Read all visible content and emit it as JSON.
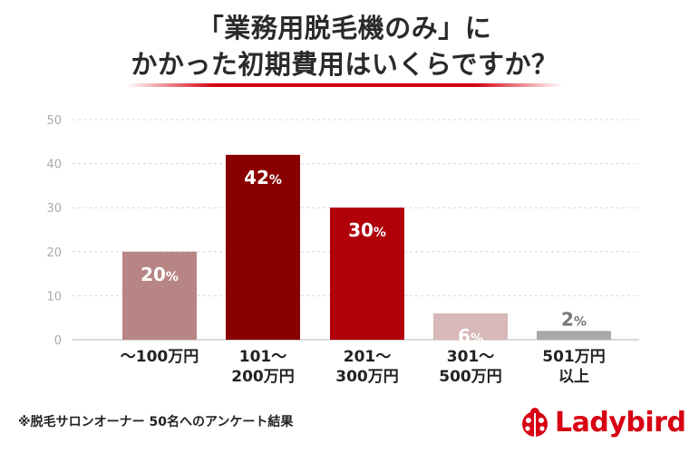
{
  "title": {
    "line1": "「業務用脱毛機のみ」に",
    "line2": "かかった初期費用はいくらですか？"
  },
  "chart_data": {
    "type": "bar",
    "title": "「業務用脱毛機のみ」にかかった初期費用はいくらですか？",
    "categories": [
      [
        "〜100万円"
      ],
      [
        "101〜",
        "200万円"
      ],
      [
        "201〜",
        "300万円"
      ],
      [
        "301〜",
        "500万円"
      ],
      [
        "501万円",
        "以上"
      ]
    ],
    "values": [
      20,
      42,
      30,
      6,
      2
    ],
    "value_labels": [
      "20%",
      "42%",
      "30%",
      "6%",
      "2%"
    ],
    "colors": [
      "#b88585",
      "#8a0000",
      "#b0000a",
      "#d8b8b8",
      "#a8a8a8"
    ],
    "label_colors": [
      "#ffffff",
      "#ffffff",
      "#ffffff",
      "#ffffff",
      "#777777"
    ],
    "yticks": [
      0,
      10,
      20,
      30,
      40,
      50
    ],
    "ylim": [
      0,
      50
    ],
    "grid": true,
    "xlabel": "",
    "ylabel": ""
  },
  "footnote": "※脱毛サロンオーナー 50名へのアンケート結果",
  "logo": {
    "text": "Ladybird",
    "icon": "ladybug-icon"
  }
}
